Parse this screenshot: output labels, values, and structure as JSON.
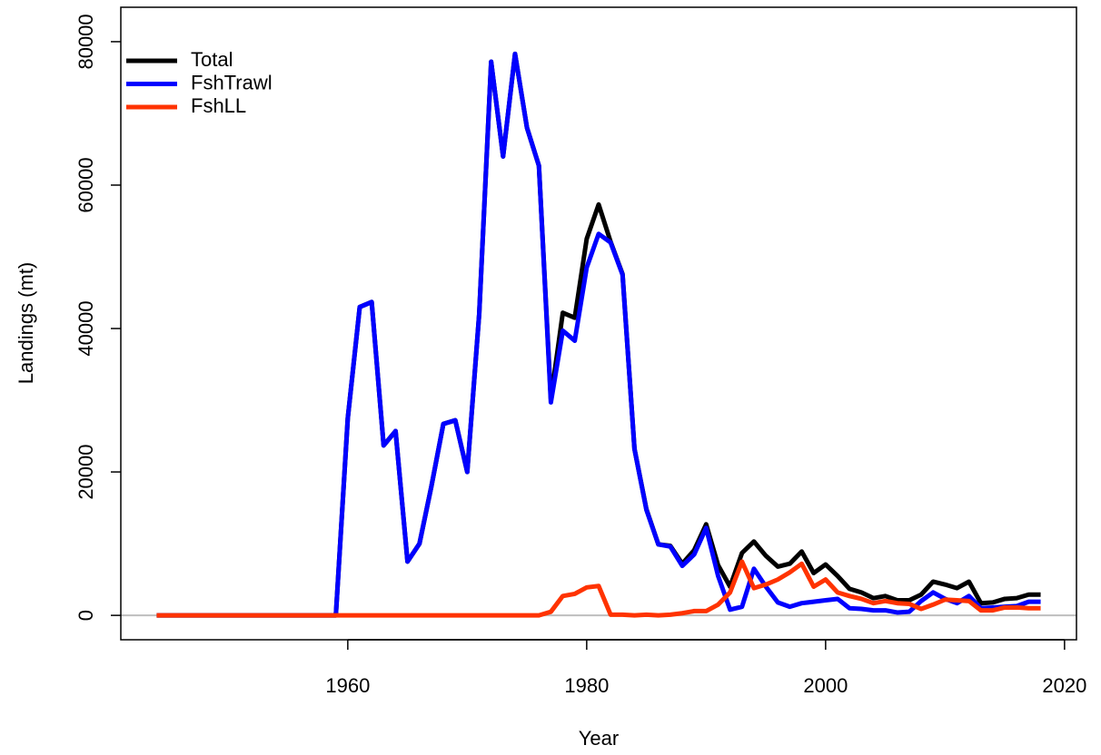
{
  "chart_data": {
    "type": "line",
    "x_label": "Year",
    "y_label": "Landings (mt)",
    "x": [
      1944,
      1945,
      1946,
      1947,
      1948,
      1949,
      1950,
      1951,
      1952,
      1953,
      1954,
      1955,
      1956,
      1957,
      1958,
      1959,
      1960,
      1961,
      1962,
      1963,
      1964,
      1965,
      1966,
      1967,
      1968,
      1969,
      1970,
      1971,
      1972,
      1973,
      1974,
      1975,
      1976,
      1977,
      1978,
      1979,
      1980,
      1981,
      1982,
      1983,
      1984,
      1985,
      1986,
      1987,
      1988,
      1989,
      1990,
      1991,
      1992,
      1993,
      1994,
      1995,
      1996,
      1997,
      1998,
      1999,
      2000,
      2001,
      2002,
      2003,
      2004,
      2005,
      2006,
      2007,
      2008,
      2009,
      2010,
      2011,
      2012,
      2013,
      2014,
      2015,
      2016,
      2017,
      2018
    ],
    "series": [
      {
        "name": "Total",
        "color": "#000000",
        "values": [
          0,
          0,
          0,
          0,
          0,
          0,
          0,
          0,
          0,
          0,
          0,
          0,
          0,
          0,
          0,
          0,
          27500,
          43000,
          43700,
          23700,
          25700,
          7500,
          10000,
          18000,
          26700,
          27200,
          20000,
          42000,
          77200,
          64000,
          78300,
          68000,
          62700,
          30200,
          42200,
          41500,
          52500,
          57300,
          52100,
          47600,
          23200,
          14800,
          9900,
          9700,
          7200,
          9100,
          12700,
          7000,
          4000,
          8700,
          10300,
          8300,
          6800,
          7200,
          8900,
          5900,
          7100,
          5500,
          3700,
          3200,
          2400,
          2700,
          2100,
          2100,
          2900,
          4700,
          4300,
          3800,
          4700,
          1700,
          1800,
          2300,
          2400,
          2900,
          2900
        ]
      },
      {
        "name": "FshTrawl",
        "color": "#0000ff",
        "values": [
          0,
          0,
          0,
          0,
          0,
          0,
          0,
          0,
          0,
          0,
          0,
          0,
          0,
          0,
          0,
          0,
          27500,
          43000,
          43700,
          23700,
          25700,
          7500,
          10000,
          18000,
          26700,
          27200,
          20000,
          42000,
          77200,
          64000,
          78300,
          68000,
          62700,
          29700,
          39700,
          38300,
          48500,
          53200,
          52000,
          47500,
          23200,
          14700,
          9900,
          9600,
          6900,
          8500,
          12200,
          5500,
          800,
          1200,
          6500,
          4000,
          1800,
          1200,
          1700,
          1900,
          2100,
          2300,
          1000,
          900,
          700,
          700,
          400,
          500,
          2000,
          3200,
          2300,
          1700,
          2700,
          1000,
          1100,
          1200,
          1300,
          1900,
          1900
        ]
      },
      {
        "name": "FshLL",
        "color": "#ff3300",
        "values": [
          0,
          0,
          0,
          0,
          0,
          0,
          0,
          0,
          0,
          0,
          0,
          0,
          0,
          0,
          0,
          0,
          0,
          0,
          0,
          0,
          0,
          0,
          0,
          0,
          0,
          0,
          0,
          0,
          0,
          0,
          0,
          0,
          0,
          500,
          2700,
          3000,
          3900,
          4100,
          100,
          100,
          0,
          100,
          0,
          100,
          300,
          600,
          600,
          1500,
          3200,
          7500,
          3800,
          4300,
          5000,
          6000,
          7200,
          4000,
          5000,
          3200,
          2700,
          2300,
          1700,
          2000,
          1700,
          1600,
          900,
          1500,
          2200,
          2100,
          2000,
          700,
          700,
          1100,
          1100,
          1000,
          1000
        ]
      }
    ],
    "xlim": [
      1941,
      2021
    ],
    "xticks": [
      1960,
      1980,
      2000,
      2020
    ],
    "ylim": [
      -3400,
      84800
    ],
    "yticks": [
      0,
      20000,
      40000,
      60000,
      80000
    ],
    "legend": "topleft"
  }
}
